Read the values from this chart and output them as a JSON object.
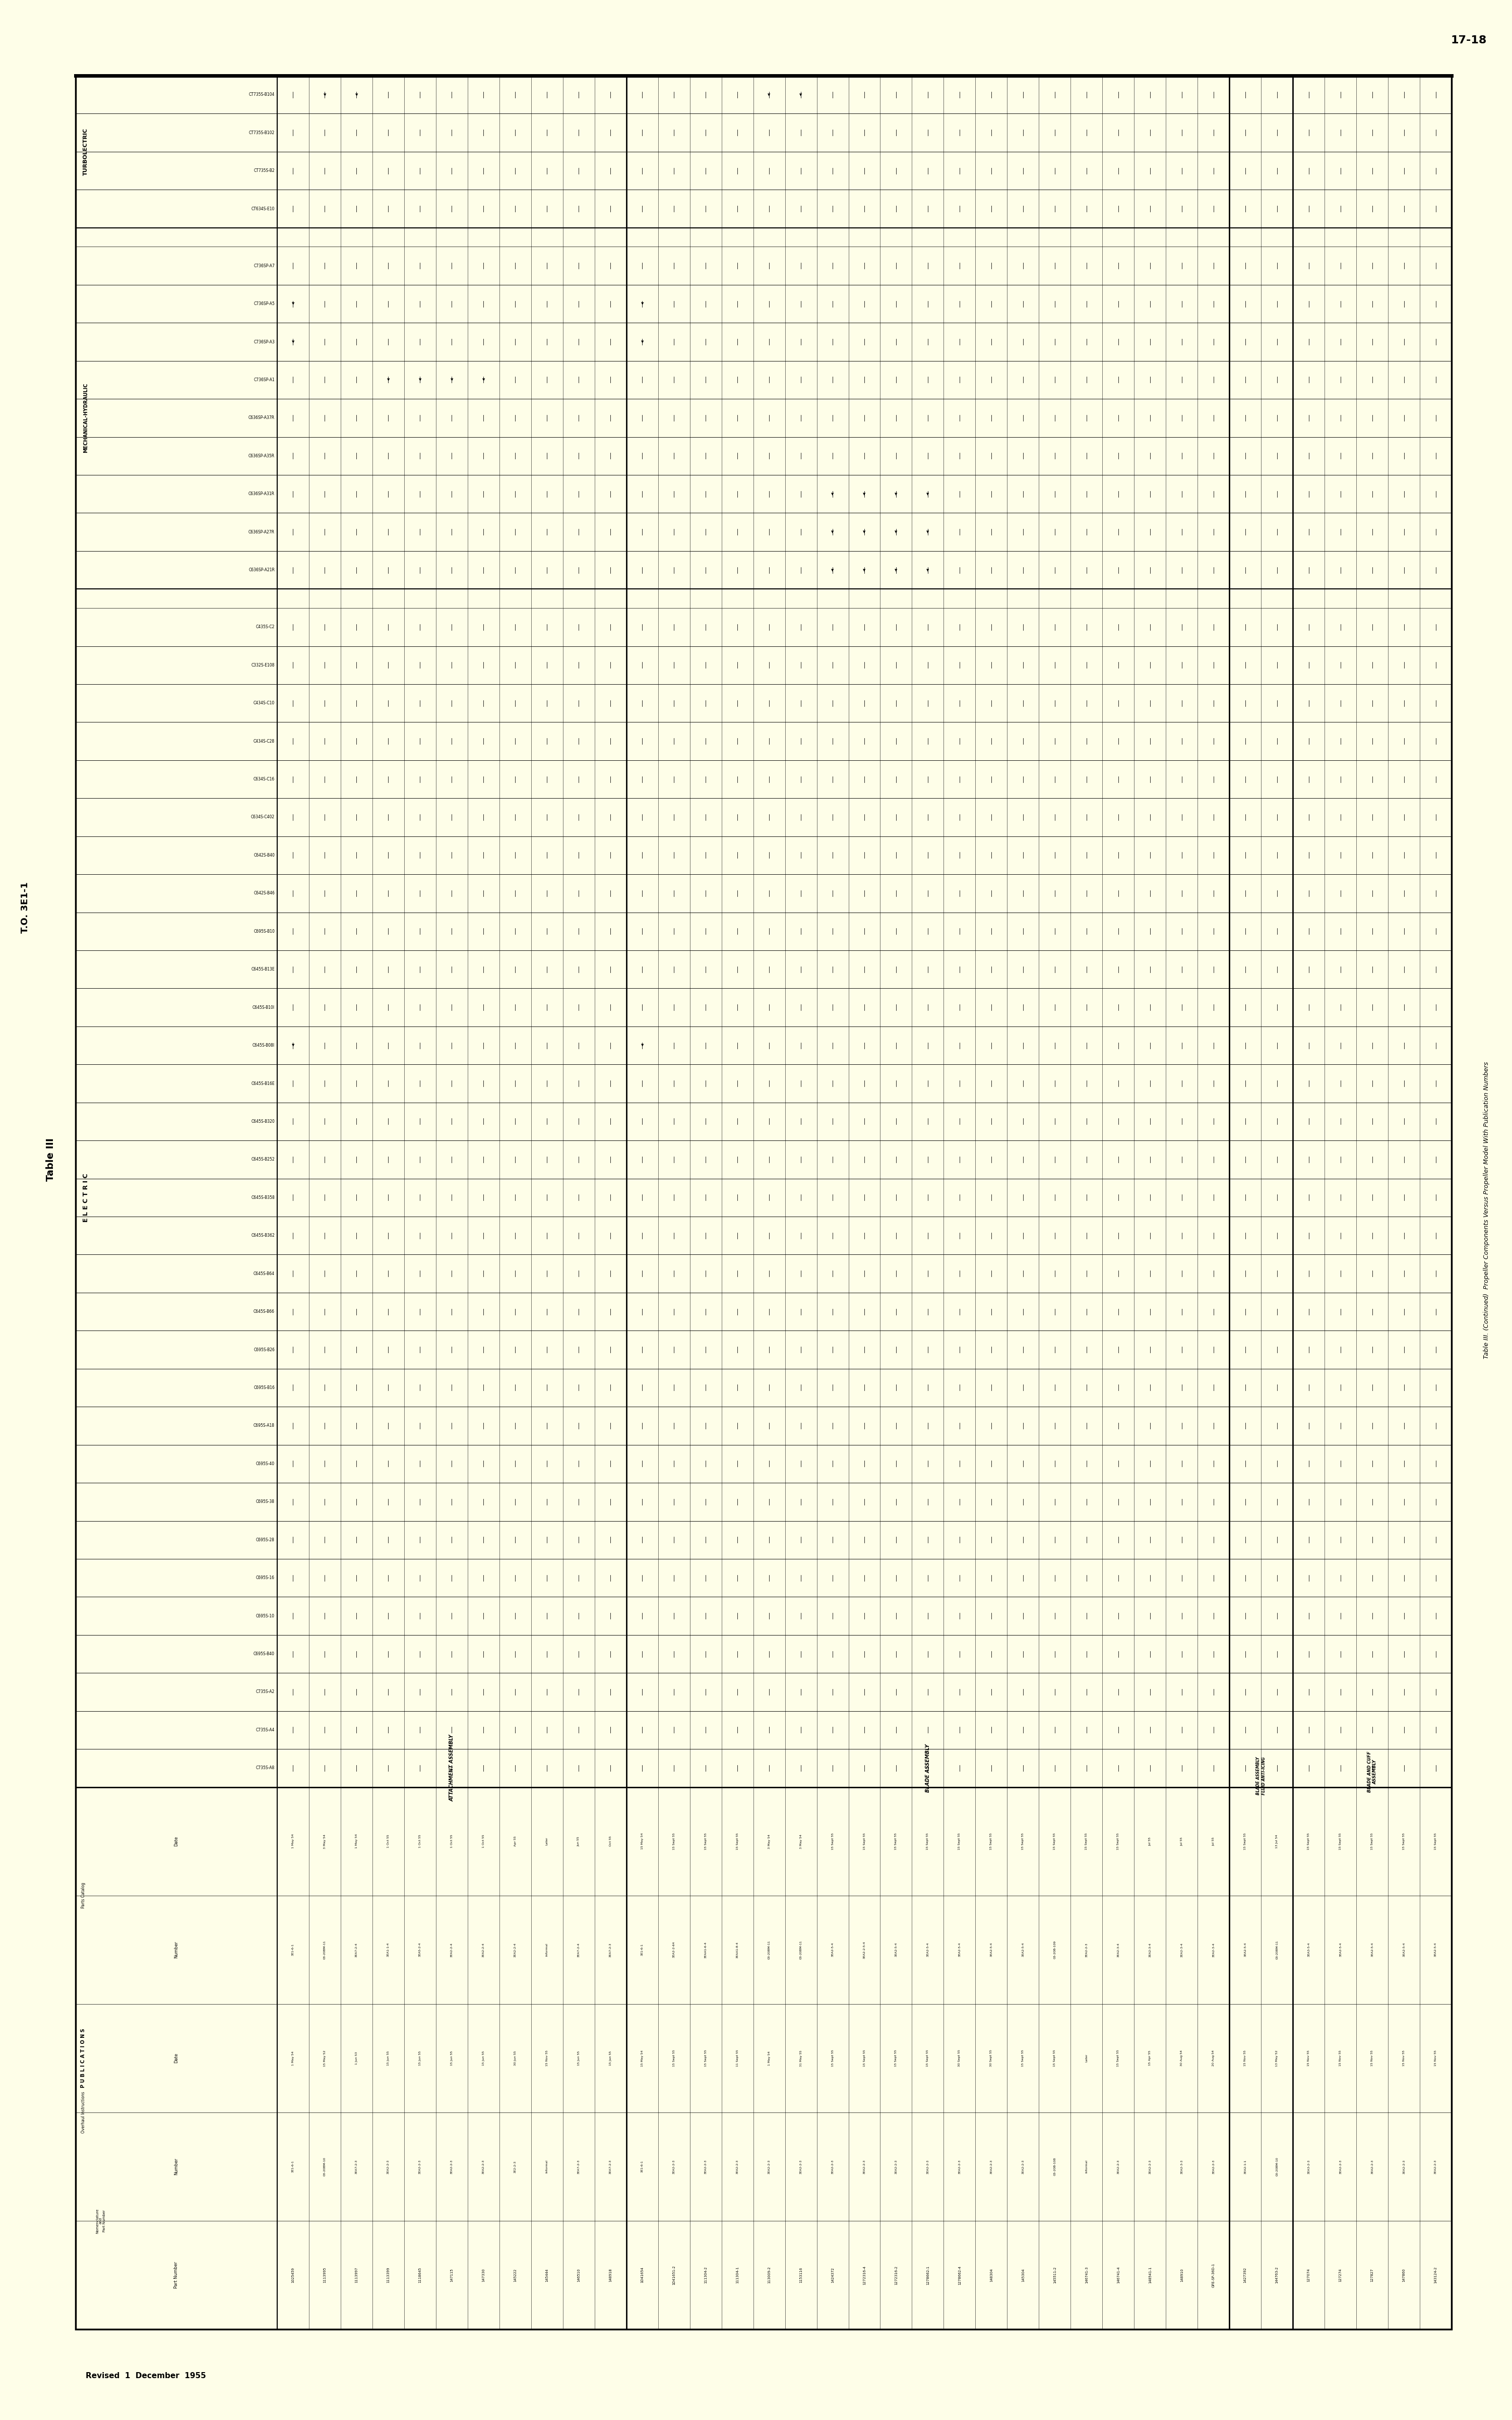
{
  "page_bg": "#fefee8",
  "turbolectric_cols": [
    "CT735S-B104",
    "CT735S-B102",
    "CT735S-B2",
    "CT634S-E10"
  ],
  "mech_hydraulic_cols": [
    "C736SP-A7",
    "C736SP-A5",
    "C736SP-A3",
    "C736SP-A1",
    "C636SP-A37R",
    "C636SP-A35R",
    "C636SP-A31R",
    "C636SP-A27R",
    "C636SP-A21R"
  ],
  "electric_cols": [
    "C435S-C2",
    "C332S-E108",
    "C434S-C10",
    "C434S-C28",
    "C634S-C16",
    "C634S-C402",
    "C642S-B40",
    "C642S-B46",
    "C695S-B10",
    "C645S-B13E",
    "C645S-B10I",
    "C645S-B08I",
    "C645S-B16E",
    "C645S-B320",
    "C645S-B252",
    "C645S-B358",
    "C645S-B362",
    "C645S-B64",
    "C645S-B66",
    "C695S-B26",
    "C695S-B16",
    "C695S-A18",
    "C695S-40",
    "C695S-38",
    "C695S-28",
    "C695S-16",
    "C695S-10",
    "C695S-B40",
    "C735S-A2",
    "C735S-A4",
    "C735S-A8"
  ],
  "attachment_rows": [
    [
      "1025459",
      "3E1-6-1",
      "1 May 54",
      "3E1-6-1",
      "1 May 54",
      [
        5,
        6,
        24
      ]
    ],
    [
      "1113995",
      "03-20BM-10",
      "15 May 52",
      "03-20BM-11",
      "3 May 54",
      [
        0
      ]
    ],
    [
      "1113997",
      "3EA7-2-3",
      "1 Jun 53",
      "3EA7-2-4",
      "1 May 54",
      [
        0
      ]
    ],
    [
      "1113399",
      "3EA2-2-3",
      "15 Jun 55",
      "3EA1-1-4",
      "1 Oct 55",
      [
        7
      ]
    ],
    [
      "1118645",
      "3EA2-2-3",
      "15 Jun 55",
      "3EA5-2-4",
      "1 Oct 55",
      [
        7
      ]
    ],
    [
      "147115",
      "3EA2-2-3",
      "15 Jun 55",
      "3EA2-2-4",
      "1 Oct 55",
      [
        7
      ]
    ],
    [
      "147330",
      "3EA2-2-3",
      "15 Jun 55",
      "3EA2-2-4",
      "1 Oct 55",
      [
        7
      ]
    ],
    [
      "145222",
      "3E2-2-3",
      "30 Jun 55",
      "3EA2-2-4",
      "Apr 55",
      []
    ],
    [
      "145444",
      "Informal",
      "15 Nov 55",
      "Informal",
      "Later",
      []
    ],
    [
      "146510",
      "3EA7-2-3",
      "15 Jun 55",
      "3EA7-2-4",
      "Jun 55",
      []
    ],
    [
      "148918",
      "3EA7-2-3",
      "15 Jan 55",
      "3EA7-2-3",
      "Oct 55",
      []
    ]
  ],
  "blade_rows": [
    [
      "1D41654",
      "3E1-6-1",
      "15 May 54",
      "3E1-6-1",
      "15 May 54",
      [
        5,
        6,
        24
      ]
    ],
    [
      "1D41651-2",
      "3EA2-2-3",
      "15 Sept 55",
      "3EA2-2-64",
      "15 Sept 55",
      []
    ],
    [
      "111304-2",
      "3EA2-2-3",
      "15 Sept 55",
      "3EAA1-6-4",
      "15 Sept 55",
      []
    ],
    [
      "111304-1",
      "3EA2-2-3",
      "11 Sept 55",
      "3EAA1-8-4",
      "15 Sept 55",
      []
    ],
    [
      "113009-2",
      "3EA2-2-3",
      "1 May 54",
      "03-20BM-11",
      "3 May 54",
      [
        0
      ]
    ],
    [
      "1153116",
      "3EA2-2-3",
      "31 May 55",
      "03-20BM-11",
      "3 May 54",
      [
        0
      ]
    ],
    [
      "1424372",
      "3EA2-2-3",
      "15 Sept 55",
      "3EA2-5-4",
      "15 Sept 55",
      [
        10,
        11,
        12
      ]
    ],
    [
      "1272316-4",
      "3EA2-2-3",
      "15 Sept 55",
      "3EA2-2-5-4",
      "15 Sept 55",
      [
        10,
        11,
        12
      ]
    ],
    [
      "1272316-2",
      "3EA2-2-3",
      "15 Sept 55",
      "3EA2-5-4",
      "15 Sept 55",
      [
        10,
        11,
        12
      ]
    ],
    [
      "1278662-1",
      "3EA2-2-3",
      "15 Sept 55",
      "3EA2-5-4",
      "15 Sept 55",
      [
        10,
        11,
        12
      ]
    ],
    [
      "1278662-4",
      "3EA2-2-3",
      "30 Sept 55",
      "3EA2-5-4",
      "15 Sept 55",
      []
    ],
    [
      "148304",
      "3EA2-2-3",
      "30 Sept 55",
      "3EA2-5-4",
      "15 Sept 55",
      []
    ],
    [
      "145304",
      "3EA2-2-3",
      "15 Sept 55",
      "3EA2-5-4",
      "15 Sept 55",
      []
    ],
    [
      "145511-2",
      "03-20B-108",
      "15 Sept 55",
      "03-20B-109",
      "15 Sept 55",
      []
    ],
    [
      "146741-3",
      "Informal",
      "Later",
      "3EA2-2-3",
      "15 Sept 55",
      []
    ],
    [
      "146741-4",
      "3EA2-2-3",
      "15 Sept 55",
      "3EA2-3-4",
      "15 Sept 55",
      []
    ],
    [
      "148541-1",
      "3EA2-2-3",
      "15 Apr 55",
      "3EA2-3-4",
      "Jul 55",
      []
    ],
    [
      "148910",
      "3EA2-3-3",
      "30 Aug 54",
      "3EA2-3-4",
      "Jul 55",
      []
    ],
    [
      "GFE-SP-36D-1",
      "3EA2-2-3",
      "20 Aug 54",
      "3EA2-3-4",
      "Jul 55",
      []
    ]
  ],
  "fluid_rows": [
    [
      "1427392",
      "3EA2-1-1",
      "15 Nov 55",
      "3EA2-5-4",
      "15 Sept 55",
      []
    ],
    [
      "144763-2",
      "03-20BM-10",
      "13 May 52",
      "03-20BM-11",
      "13 Jul 54",
      []
    ]
  ],
  "cuff_rows": [
    [
      "127074",
      "3EA3-2-3",
      "15 Nov 55",
      "3EA3-5-4",
      "15 Sept 55",
      []
    ],
    [
      "127274",
      "3EA2-2-3",
      "15 Nov 55",
      "3EA2-5-4",
      "15 Sept 55",
      []
    ],
    [
      "127827",
      "3EA2-2-3",
      "15 Nov 55",
      "3EA2-5-4",
      "15 Sept 55",
      []
    ],
    [
      "147860",
      "3EA2-2-3",
      "15 Nov 55",
      "3EA2-5-4",
      "15 Sept 55",
      []
    ],
    [
      "143124-2",
      "3EA2-2-3",
      "15 Nov 55",
      "3EA2-5-4",
      "15 Sept 55",
      []
    ]
  ]
}
